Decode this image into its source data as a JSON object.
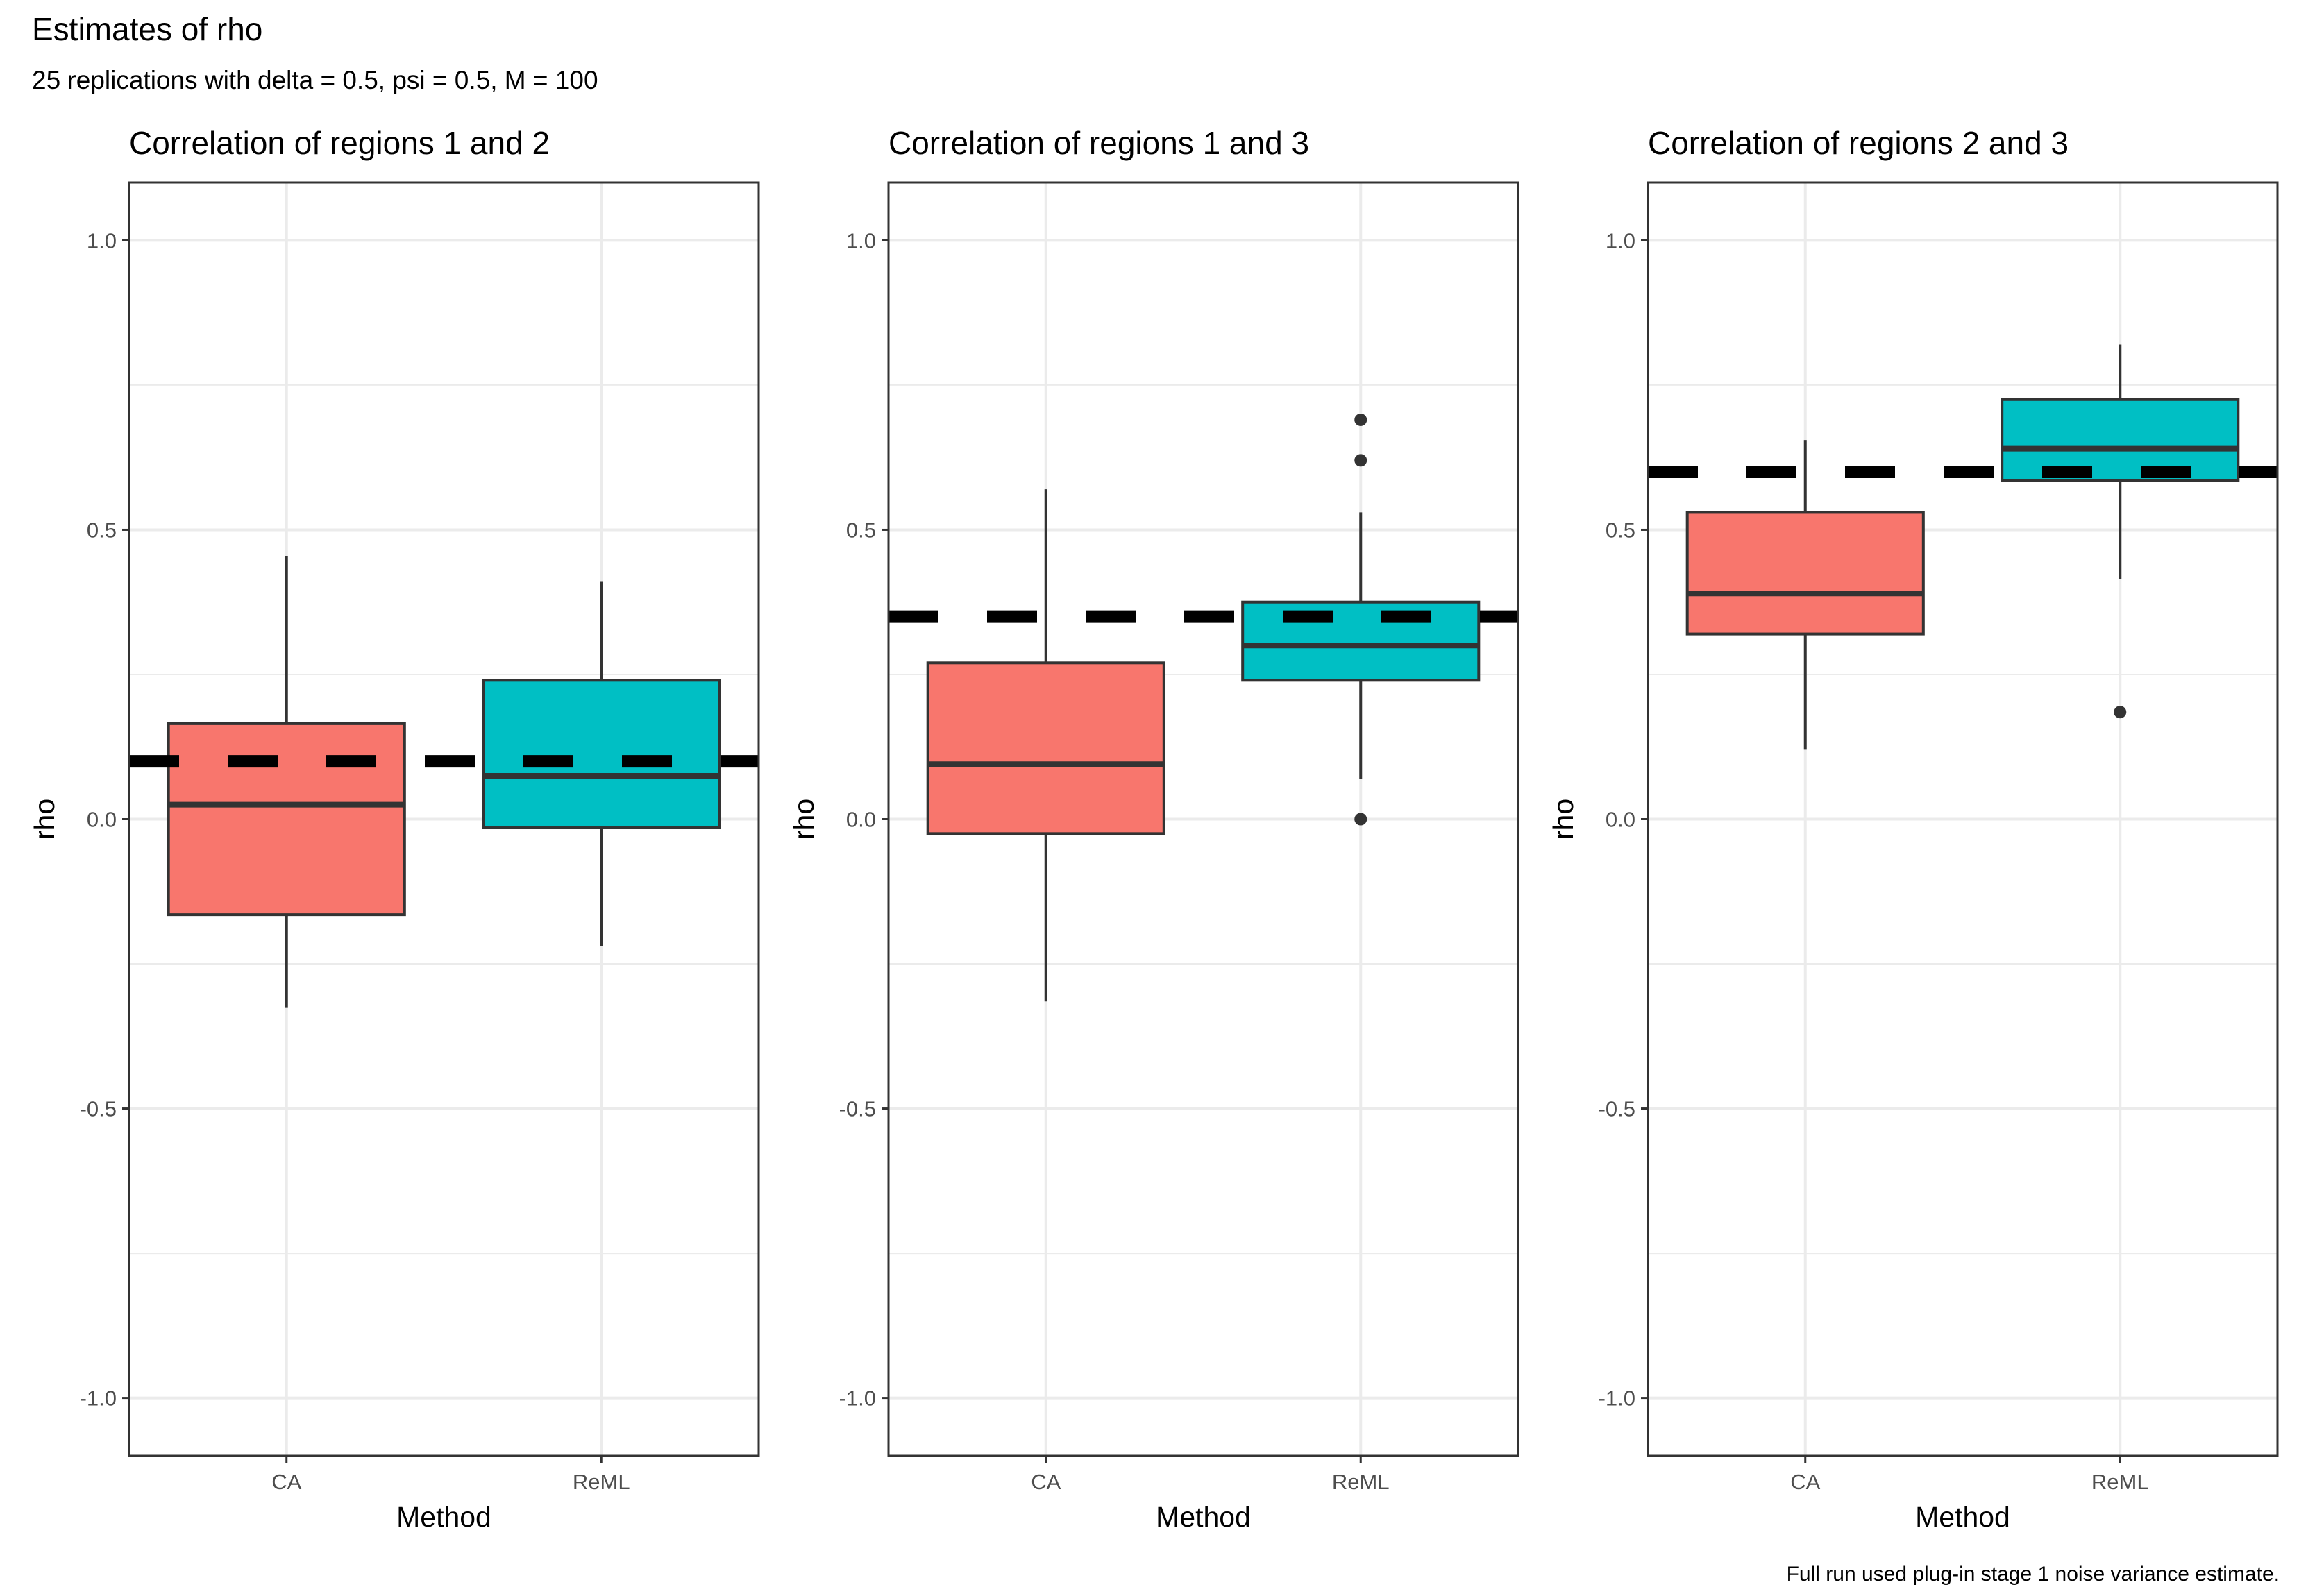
{
  "title": "Estimates of rho",
  "subtitle": "25 replications with delta = 0.5, psi = 0.5, M = 100",
  "caption": "Full run used plug-in stage 1 noise variance estimate.",
  "colors": {
    "CA": "#F8766D",
    "ReML": "#00BFC4",
    "outline": "#333333",
    "reference_line": "#000000",
    "grid": "#EBEBEB"
  },
  "chart_data": [
    {
      "type": "boxplot",
      "title": "Correlation of regions 1 and 2",
      "xlabel": "Method",
      "ylabel": "rho",
      "ylim": [
        -1.1,
        1.1
      ],
      "y_ticks": [
        -1.0,
        -0.5,
        0.0,
        0.5,
        1.0
      ],
      "y_tick_labels": [
        "-1.0",
        "-0.5",
        "0.0",
        "0.5",
        "1.0"
      ],
      "categories": [
        "CA",
        "ReML"
      ],
      "reference_line": 0.1,
      "grid": true,
      "boxes": [
        {
          "category": "CA",
          "lower_whisker": -0.325,
          "q1": -0.165,
          "median": 0.025,
          "q3": 0.165,
          "upper_whisker": 0.455,
          "outliers": []
        },
        {
          "category": "ReML",
          "lower_whisker": -0.22,
          "q1": -0.015,
          "median": 0.075,
          "q3": 0.24,
          "upper_whisker": 0.41,
          "outliers": []
        }
      ]
    },
    {
      "type": "boxplot",
      "title": "Correlation of regions 1 and 3",
      "xlabel": "Method",
      "ylabel": "rho",
      "ylim": [
        -1.1,
        1.1
      ],
      "y_ticks": [
        -1.0,
        -0.5,
        0.0,
        0.5,
        1.0
      ],
      "y_tick_labels": [
        "-1.0",
        "-0.5",
        "0.0",
        "0.5",
        "1.0"
      ],
      "categories": [
        "CA",
        "ReML"
      ],
      "reference_line": 0.35,
      "grid": true,
      "boxes": [
        {
          "category": "CA",
          "lower_whisker": -0.315,
          "q1": -0.025,
          "median": 0.095,
          "q3": 0.27,
          "upper_whisker": 0.57,
          "outliers": []
        },
        {
          "category": "ReML",
          "lower_whisker": 0.07,
          "q1": 0.24,
          "median": 0.3,
          "q3": 0.375,
          "upper_whisker": 0.53,
          "outliers": [
            0.0,
            0.62,
            0.69
          ]
        }
      ]
    },
    {
      "type": "boxplot",
      "title": "Correlation of regions 2 and 3",
      "xlabel": "Method",
      "ylabel": "rho",
      "ylim": [
        -1.1,
        1.1
      ],
      "y_ticks": [
        -1.0,
        -0.5,
        0.0,
        0.5,
        1.0
      ],
      "y_tick_labels": [
        "-1.0",
        "-0.5",
        "0.0",
        "0.5",
        "1.0"
      ],
      "categories": [
        "CA",
        "ReML"
      ],
      "reference_line": 0.6,
      "grid": true,
      "boxes": [
        {
          "category": "CA",
          "lower_whisker": 0.12,
          "q1": 0.32,
          "median": 0.39,
          "q3": 0.53,
          "upper_whisker": 0.655,
          "outliers": []
        },
        {
          "category": "ReML",
          "lower_whisker": 0.415,
          "q1": 0.585,
          "median": 0.64,
          "q3": 0.725,
          "upper_whisker": 0.82,
          "outliers": [
            0.185
          ]
        }
      ]
    }
  ]
}
